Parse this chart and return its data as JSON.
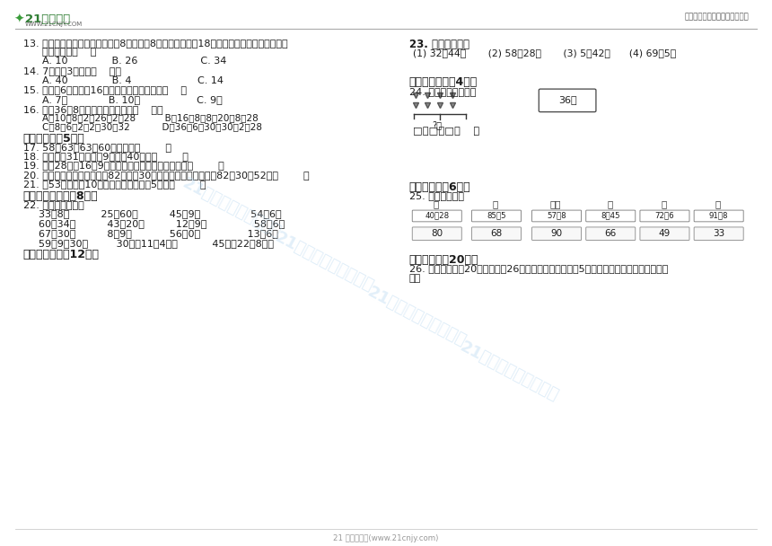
{
  "bg_color": "#ffffff",
  "header_line_color": "#aaaaaa",
  "footer_line_color": "#cccccc",
  "logo_text": "21世纪教育",
  "logo_sub": "WWW.21CNJY.COM",
  "top_right_text": "中小学教育资源及组卷应用平台",
  "footer_text": "21 世纪教育网(www.21cnjy.com)"
}
